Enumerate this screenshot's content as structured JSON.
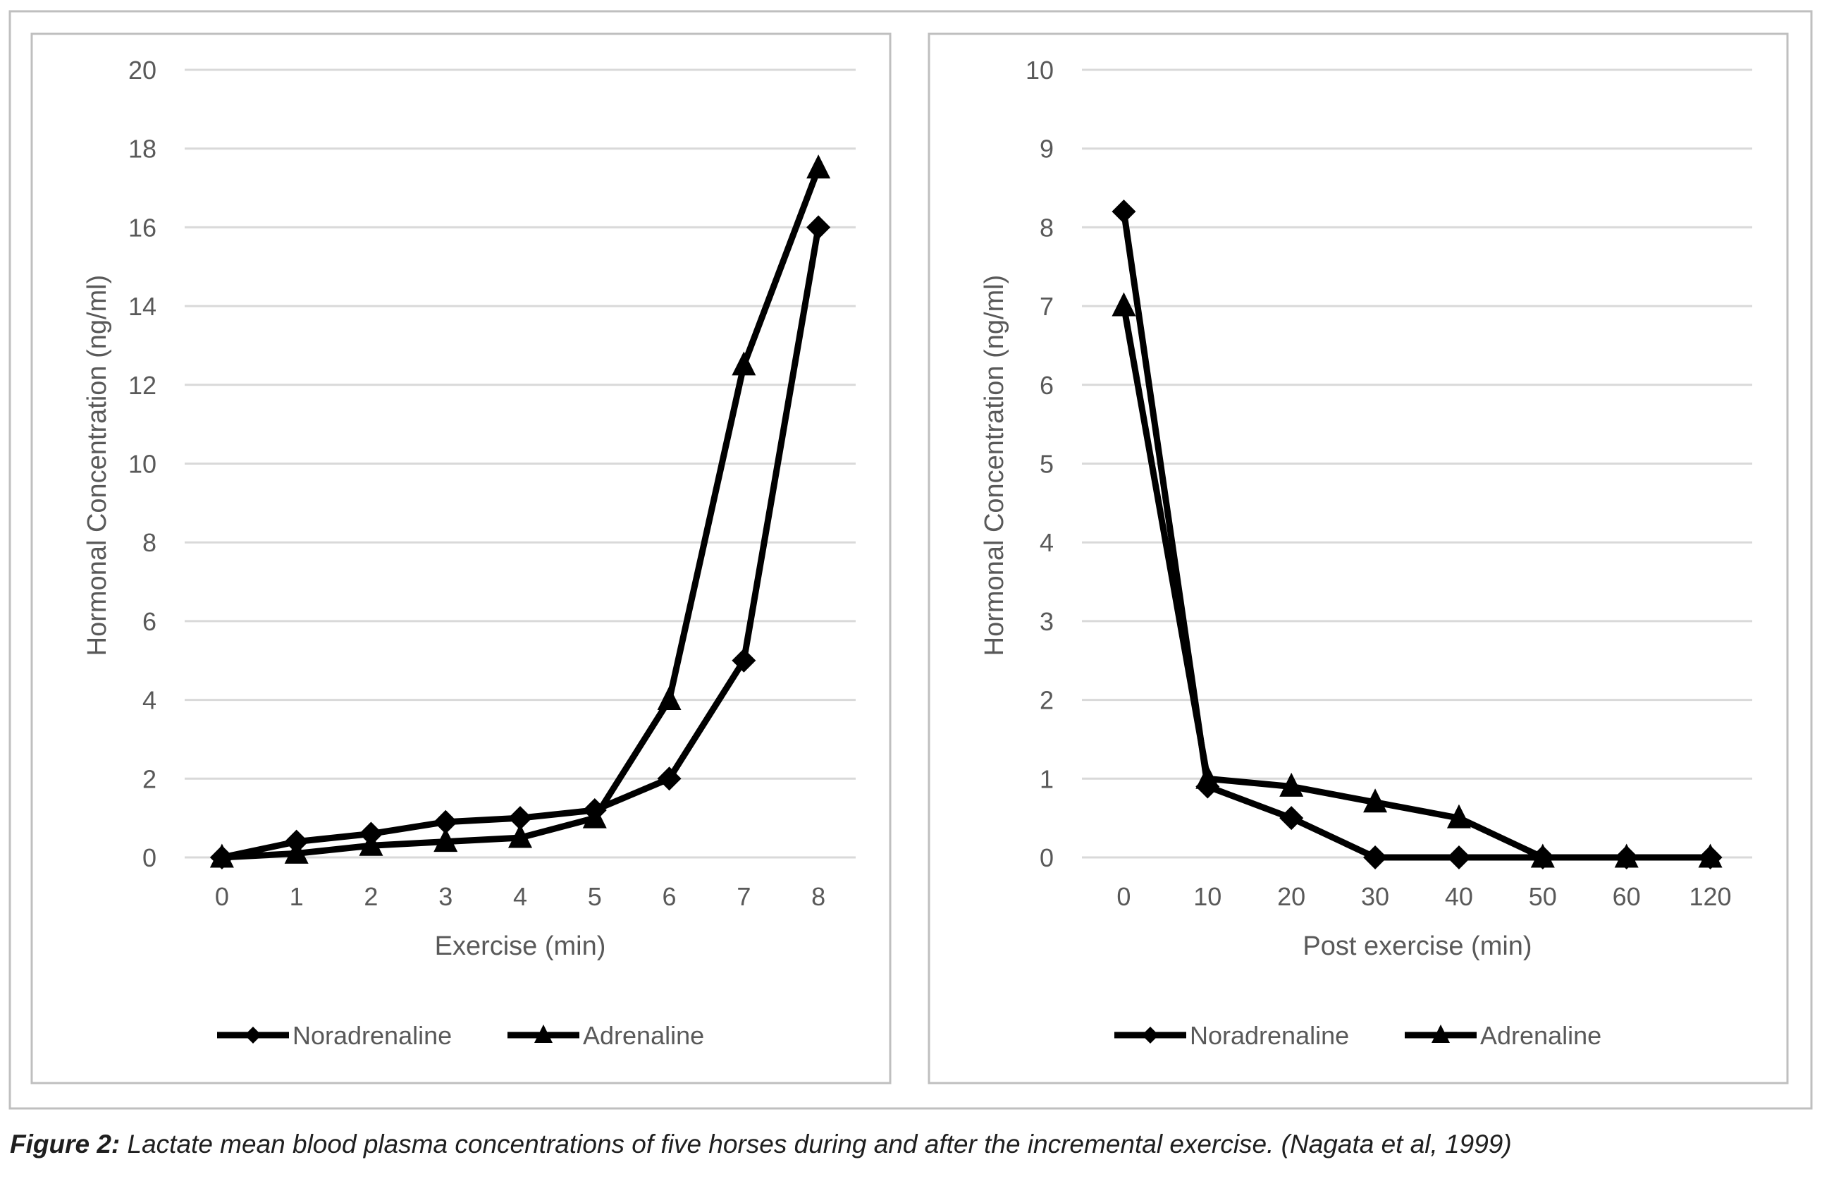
{
  "chart_data": [
    {
      "type": "line",
      "categories": [
        "0",
        "1",
        "2",
        "3",
        "4",
        "5",
        "6",
        "7",
        "8"
      ],
      "xlabel": "Exercise (min)",
      "ylabel": "Hormonal Concentration (ng/ml)",
      "ylim": [
        0,
        20
      ],
      "ytick_step": 2,
      "yticks": [
        "0",
        "2",
        "4",
        "6",
        "8",
        "10",
        "12",
        "14",
        "16",
        "18",
        "20"
      ],
      "grid": true,
      "legend_position": "bottom",
      "series": [
        {
          "name": "Noradrenaline",
          "marker": "diamond",
          "values": [
            0,
            0.4,
            0.6,
            0.9,
            1.0,
            1.2,
            2.0,
            5.0,
            16.0
          ]
        },
        {
          "name": "Adrenaline",
          "marker": "triangle",
          "values": [
            0,
            0.1,
            0.3,
            0.4,
            0.5,
            1.0,
            4.0,
            12.5,
            17.5
          ]
        }
      ]
    },
    {
      "type": "line",
      "categories": [
        "0",
        "10",
        "20",
        "30",
        "40",
        "50",
        "60",
        "120"
      ],
      "xlabel": "Post exercise (min)",
      "ylabel": "Hormonal Concentration (ng/ml)",
      "ylim": [
        0,
        10
      ],
      "ytick_step": 1,
      "yticks": [
        "0",
        "1",
        "2",
        "3",
        "4",
        "5",
        "6",
        "7",
        "8",
        "9",
        "10"
      ],
      "grid": true,
      "legend_position": "bottom",
      "series": [
        {
          "name": "Noradrenaline",
          "marker": "diamond",
          "values": [
            8.2,
            0.9,
            0.5,
            0,
            0,
            0,
            0,
            0
          ]
        },
        {
          "name": "Adrenaline",
          "marker": "triangle",
          "values": [
            7.0,
            1.0,
            0.9,
            0.7,
            0.5,
            0,
            0,
            0
          ]
        }
      ]
    }
  ],
  "caption": {
    "label": "Figure 2:",
    "text": " Lactate mean blood plasma concentrations of five horses during and after the incremental exercise. (Nagata et al, 1999)"
  },
  "colors": {
    "line": "#000000",
    "grid": "#d9d9d9",
    "axis": "#d9d9d9",
    "text": "#595959",
    "frame": "#bfbfbf"
  }
}
